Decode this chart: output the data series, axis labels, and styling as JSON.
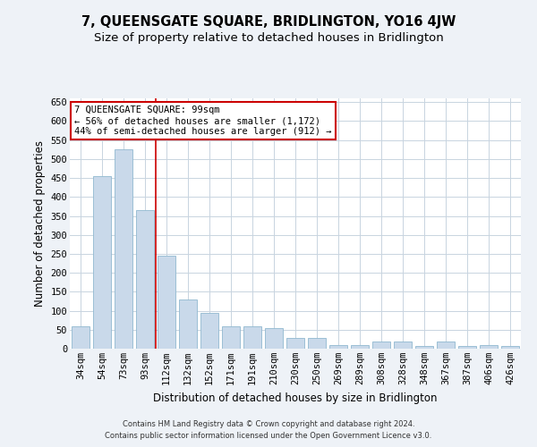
{
  "title": "7, QUEENSGATE SQUARE, BRIDLINGTON, YO16 4JW",
  "subtitle": "Size of property relative to detached houses in Bridlington",
  "xlabel": "Distribution of detached houses by size in Bridlington",
  "ylabel": "Number of detached properties",
  "categories": [
    "34sqm",
    "54sqm",
    "73sqm",
    "93sqm",
    "112sqm",
    "132sqm",
    "152sqm",
    "171sqm",
    "191sqm",
    "210sqm",
    "230sqm",
    "250sqm",
    "269sqm",
    "289sqm",
    "308sqm",
    "328sqm",
    "348sqm",
    "367sqm",
    "387sqm",
    "406sqm",
    "426sqm"
  ],
  "values": [
    60,
    455,
    525,
    365,
    245,
    130,
    95,
    60,
    60,
    55,
    28,
    28,
    10,
    10,
    20,
    20,
    8,
    18,
    8,
    10,
    8
  ],
  "bar_color": "#c9d9ea",
  "bar_edge_color": "#90b8d0",
  "vline_color": "#cc0000",
  "annotation_text": "7 QUEENSGATE SQUARE: 99sqm\n← 56% of detached houses are smaller (1,172)\n44% of semi-detached houses are larger (912) →",
  "annotation_box_color": "white",
  "annotation_box_edge": "#cc0000",
  "footer1": "Contains HM Land Registry data © Crown copyright and database right 2024.",
  "footer2": "Contains public sector information licensed under the Open Government Licence v3.0.",
  "ylim": [
    0,
    660
  ],
  "yticks": [
    0,
    50,
    100,
    150,
    200,
    250,
    300,
    350,
    400,
    450,
    500,
    550,
    600,
    650
  ],
  "bg_color": "#eef2f7",
  "plot_bg": "#ffffff",
  "grid_color": "#c8d4e0",
  "title_fontsize": 10.5,
  "subtitle_fontsize": 9.5,
  "tick_fontsize": 7.5,
  "label_fontsize": 8.5,
  "footer_fontsize": 6.0
}
